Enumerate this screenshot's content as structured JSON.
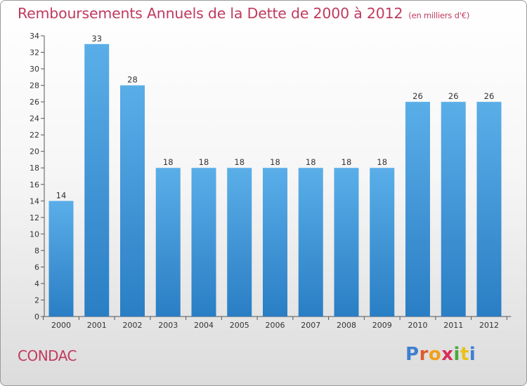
{
  "header": {
    "title": "Remboursements Annuels de la Dette de 2000 à 2012",
    "unit": "(en milliers d'€)"
  },
  "footer": {
    "commune": "CONDAC",
    "logo_text": "Proxiti"
  },
  "colors": {
    "title": "#c03a5f",
    "bar_top": "#5aaee8",
    "bar_bottom": "#2a7ec4",
    "logo_letters": [
      "#3f7fd0",
      "#e05a2a",
      "#f2a019",
      "#d62e5a",
      "#4aa83a",
      "#e8c21a",
      "#3f7fd0"
    ]
  },
  "chart_data": {
    "type": "bar",
    "title": "Remboursements Annuels de la Dette de 2000 à 2012",
    "subtitle": "(en milliers d'€)",
    "categories": [
      "2000",
      "2001",
      "2002",
      "2003",
      "2004",
      "2005",
      "2006",
      "2007",
      "2008",
      "2009",
      "2010",
      "2011",
      "2012"
    ],
    "values": [
      14,
      33,
      28,
      18,
      18,
      18,
      18,
      18,
      18,
      18,
      26,
      26,
      26
    ],
    "ylim": [
      0,
      34
    ],
    "ytick_step": 2,
    "grid": false,
    "legend": "none"
  }
}
